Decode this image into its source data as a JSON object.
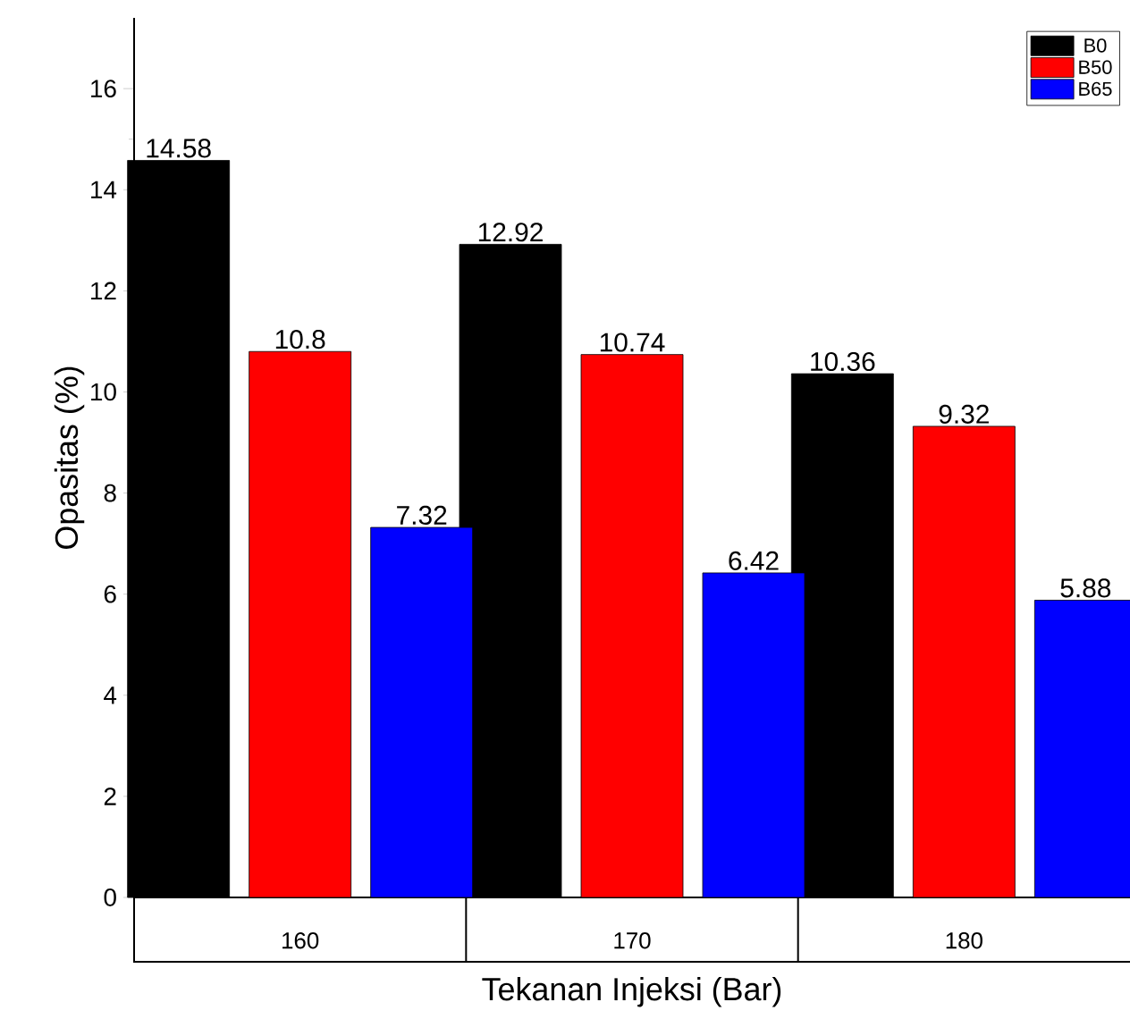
{
  "chart_data": {
    "type": "bar",
    "xlabel": "Tekanan Injeksi (Bar)",
    "ylabel": "Opasitas (%)",
    "categories": [
      "160",
      "170",
      "180"
    ],
    "series": [
      {
        "name": "B0",
        "color": "#000000",
        "values": [
          14.58,
          12.92,
          10.36
        ]
      },
      {
        "name": "B50",
        "color": "#ff0000",
        "values": [
          10.8,
          10.74,
          9.32
        ]
      },
      {
        "name": "B65",
        "color": "#0000ff",
        "values": [
          7.32,
          6.42,
          5.88
        ]
      }
    ],
    "ylim": [
      0,
      17.4
    ],
    "yticks": [
      0,
      2,
      4,
      6,
      8,
      10,
      12,
      14,
      16
    ],
    "data_labels": true,
    "legend": "top right",
    "grid": false
  }
}
